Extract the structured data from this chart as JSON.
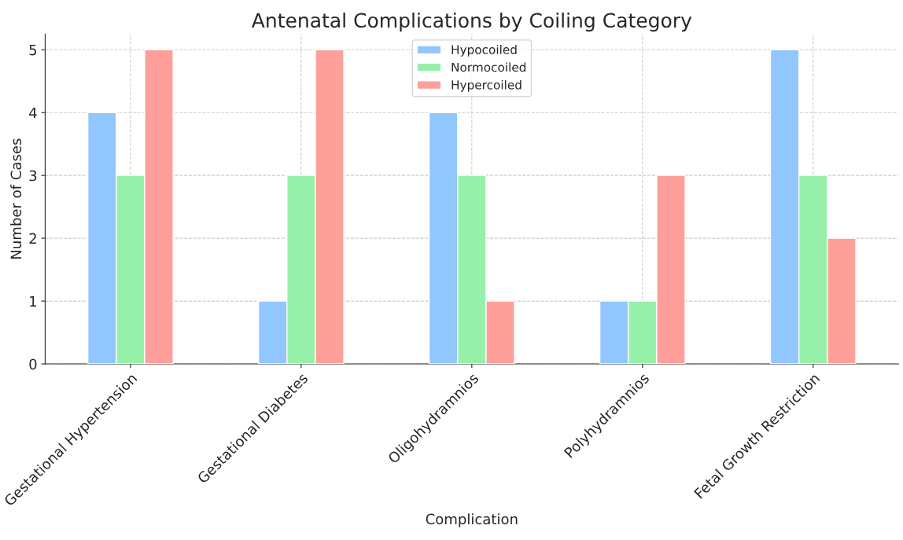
{
  "chart_data": {
    "type": "bar",
    "title": "Antenatal Complications by Coiling Category",
    "xlabel": "Complication",
    "ylabel": "Number of Cases",
    "categories": [
      "Gestational Hypertension",
      "Gestational Diabetes",
      "Oligohydramnios",
      "Polyhydramnios",
      "Fetal Growth Restriction"
    ],
    "series": [
      {
        "name": "Hypocoiled",
        "color": "#92c6ff",
        "values": [
          4,
          1,
          4,
          1,
          5
        ]
      },
      {
        "name": "Normocoiled",
        "color": "#97f0aa",
        "values": [
          3,
          3,
          3,
          1,
          3
        ]
      },
      {
        "name": "Hypercoiled",
        "color": "#ff9f9a",
        "values": [
          5,
          5,
          1,
          3,
          2
        ]
      }
    ],
    "ylim": [
      0,
      5.25
    ],
    "yticks": [
      0,
      1,
      2,
      3,
      4,
      5
    ],
    "grid": true,
    "legend": "top"
  }
}
